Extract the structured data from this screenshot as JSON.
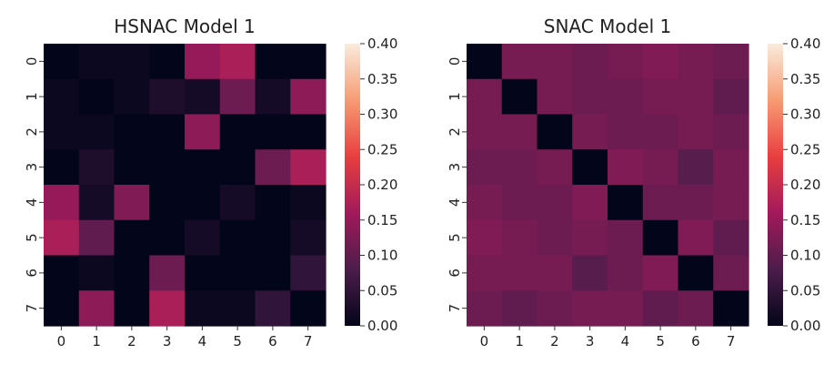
{
  "chart_data": [
    {
      "type": "heatmap",
      "title": "HSNAC Model 1",
      "x": [
        "0",
        "1",
        "2",
        "3",
        "4",
        "5",
        "6",
        "7"
      ],
      "y": [
        "0",
        "1",
        "2",
        "3",
        "4",
        "5",
        "6",
        "7"
      ],
      "values": [
        [
          0.0,
          0.01,
          0.01,
          0.0,
          0.15,
          0.17,
          0.0,
          0.0
        ],
        [
          0.01,
          0.0,
          0.01,
          0.03,
          0.02,
          0.11,
          0.02,
          0.14
        ],
        [
          0.01,
          0.01,
          0.0,
          0.0,
          0.14,
          0.0,
          0.0,
          0.0
        ],
        [
          0.0,
          0.03,
          0.0,
          0.0,
          0.0,
          0.0,
          0.11,
          0.17
        ],
        [
          0.15,
          0.02,
          0.13,
          0.0,
          0.0,
          0.02,
          0.0,
          0.01
        ],
        [
          0.17,
          0.1,
          0.0,
          0.0,
          0.02,
          0.0,
          0.0,
          0.02
        ],
        [
          0.0,
          0.01,
          0.0,
          0.11,
          0.0,
          0.0,
          0.0,
          0.05
        ],
        [
          0.0,
          0.14,
          0.0,
          0.17,
          0.01,
          0.01,
          0.05,
          0.0
        ]
      ],
      "colorbar": {
        "range": [
          0.0,
          0.4
        ],
        "ticks": [
          "0.00",
          "0.05",
          "0.10",
          "0.15",
          "0.20",
          "0.25",
          "0.30",
          "0.35",
          "0.40"
        ]
      }
    },
    {
      "type": "heatmap",
      "title": "SNAC Model 1",
      "x": [
        "0",
        "1",
        "2",
        "3",
        "4",
        "5",
        "6",
        "7"
      ],
      "y": [
        "0",
        "1",
        "2",
        "3",
        "4",
        "5",
        "6",
        "7"
      ],
      "values": [
        [
          0.0,
          0.12,
          0.12,
          0.11,
          0.12,
          0.13,
          0.12,
          0.11
        ],
        [
          0.12,
          0.0,
          0.12,
          0.11,
          0.11,
          0.12,
          0.12,
          0.1
        ],
        [
          0.12,
          0.12,
          0.0,
          0.12,
          0.11,
          0.11,
          0.12,
          0.11
        ],
        [
          0.11,
          0.11,
          0.12,
          0.0,
          0.13,
          0.12,
          0.09,
          0.12
        ],
        [
          0.12,
          0.11,
          0.11,
          0.13,
          0.0,
          0.11,
          0.11,
          0.12
        ],
        [
          0.13,
          0.12,
          0.11,
          0.12,
          0.11,
          0.0,
          0.13,
          0.1
        ],
        [
          0.12,
          0.12,
          0.12,
          0.09,
          0.11,
          0.13,
          0.0,
          0.11
        ],
        [
          0.11,
          0.1,
          0.11,
          0.12,
          0.12,
          0.1,
          0.11,
          0.0
        ]
      ],
      "colorbar": {
        "range": [
          0.0,
          0.4
        ],
        "ticks": [
          "0.00",
          "0.05",
          "0.10",
          "0.15",
          "0.20",
          "0.25",
          "0.30",
          "0.35",
          "0.40"
        ]
      }
    }
  ],
  "colormap": "rocket",
  "colormap_stops": [
    "#03051a",
    "#4c1d4b",
    "#a11a5b",
    "#e83f3f",
    "#f69c73",
    "#faebdd"
  ]
}
